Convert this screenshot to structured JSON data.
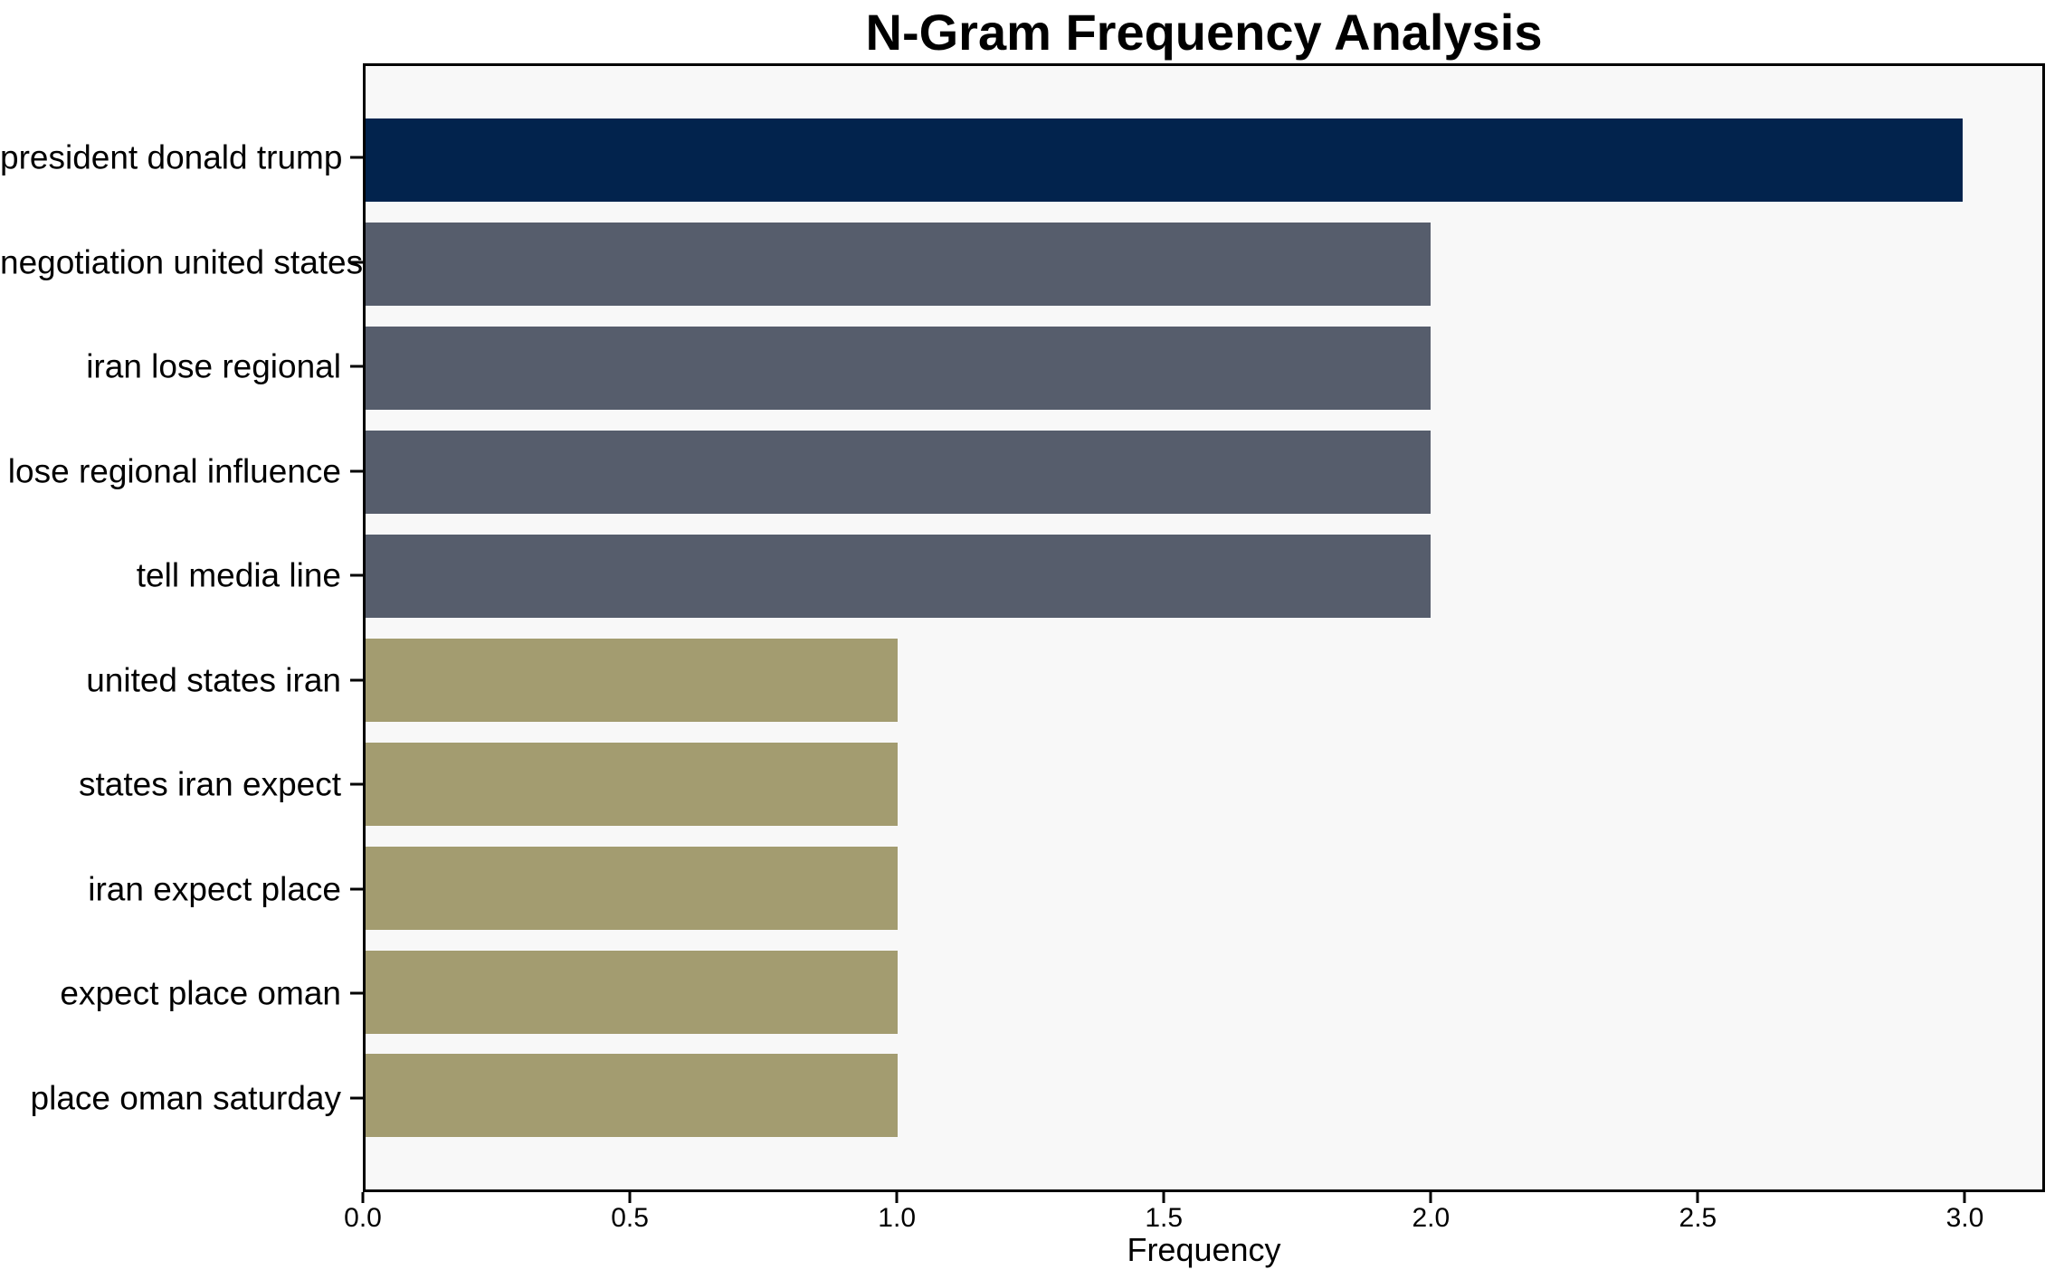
{
  "chart_data": {
    "type": "bar",
    "orientation": "horizontal",
    "title": "N-Gram Frequency Analysis",
    "xlabel": "Frequency",
    "ylabel": "",
    "categories": [
      "president donald trump",
      "negotiation united states",
      "iran lose regional",
      "lose regional influence",
      "tell media line",
      "united states iran",
      "states iran expect",
      "iran expect place",
      "expect place oman",
      "place oman saturday"
    ],
    "values": [
      3,
      2,
      2,
      2,
      2,
      1,
      1,
      1,
      1,
      1
    ],
    "bar_colors": [
      "#02234d",
      "#565d6c",
      "#565d6c",
      "#565d6c",
      "#565d6c",
      "#a39c70",
      "#a39c70",
      "#a39c70",
      "#a39c70",
      "#a39c70"
    ],
    "xlim": [
      0,
      3.15
    ],
    "x_ticks": [
      "0.0",
      "0.5",
      "1.0",
      "1.5",
      "2.0",
      "2.5",
      "3.0"
    ],
    "x_tick_values": [
      0,
      0.5,
      1,
      1.5,
      2,
      2.5,
      3
    ],
    "grid": false,
    "legend_position": "none",
    "plot_background": "#f8f8f8",
    "figure_background": "#ffffff",
    "spine_color": "#000000",
    "text_color": "#000000"
  }
}
